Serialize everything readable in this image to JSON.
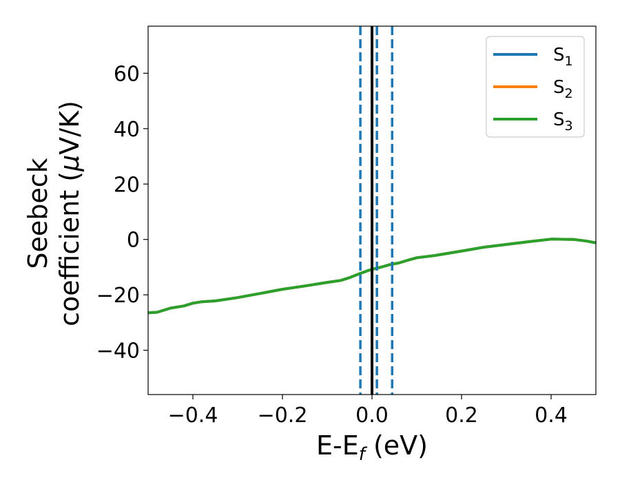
{
  "chart_data": {
    "type": "line",
    "xlabel": {
      "base": "E-E",
      "sub": "f",
      "tail": " (eV)"
    },
    "ylabel": {
      "line1": "Seebeck",
      "line2_pre": "coefficient  (",
      "mu": "μ",
      "line2_post": "V/K)"
    },
    "xlim": [
      -0.5,
      0.5
    ],
    "ylim": [
      -56,
      77
    ],
    "xticks": [
      -0.4,
      -0.2,
      0.0,
      0.2,
      0.4
    ],
    "xtick_labels": [
      "−0.4",
      "−0.2",
      "0.0",
      "0.2",
      "0.4"
    ],
    "yticks": [
      -40,
      -20,
      0,
      20,
      40,
      60
    ],
    "ytick_labels": [
      "−40",
      "−20",
      "0",
      "20",
      "40",
      "60"
    ],
    "grid": false,
    "legend_position": "top-right",
    "series": [
      {
        "name": "S1",
        "base": "S",
        "sub": "1",
        "color": "#1f77b4",
        "x": [
          -0.5,
          -0.48,
          -0.45,
          -0.42,
          -0.4,
          -0.38,
          -0.35,
          -0.3,
          -0.25,
          -0.2,
          -0.15,
          -0.1,
          -0.07,
          -0.05,
          -0.03,
          -0.01,
          0.0,
          0.02,
          0.04,
          0.06,
          0.08,
          0.1,
          0.14,
          0.2,
          0.25,
          0.3,
          0.35,
          0.4,
          0.45,
          0.48,
          0.5
        ],
        "y": [
          -26.5,
          -26.3,
          -24.8,
          -24.0,
          -23.0,
          -22.5,
          -22.2,
          -21.0,
          -19.5,
          -18.0,
          -16.8,
          -15.5,
          -14.8,
          -13.8,
          -12.5,
          -11.3,
          -10.8,
          -10.0,
          -9.1,
          -8.5,
          -7.5,
          -6.6,
          -5.8,
          -4.2,
          -2.8,
          -1.8,
          -0.8,
          0.1,
          0.0,
          -0.6,
          -1.2
        ]
      },
      {
        "name": "S2",
        "base": "S",
        "sub": "2",
        "color": "#ff7f0e",
        "x": [
          -0.5,
          -0.48,
          -0.45,
          -0.42,
          -0.4,
          -0.38,
          -0.35,
          -0.3,
          -0.25,
          -0.2,
          -0.15,
          -0.1,
          -0.07,
          -0.05,
          -0.03,
          -0.01,
          0.0,
          0.02,
          0.04,
          0.06,
          0.08,
          0.1,
          0.14,
          0.2,
          0.25,
          0.3,
          0.35,
          0.4,
          0.45,
          0.48,
          0.5
        ],
        "y": [
          -26.5,
          -26.3,
          -24.8,
          -24.0,
          -23.0,
          -22.5,
          -22.2,
          -21.0,
          -19.5,
          -18.0,
          -16.8,
          -15.5,
          -14.8,
          -13.8,
          -12.5,
          -11.3,
          -10.8,
          -10.0,
          -9.1,
          -8.5,
          -7.5,
          -6.6,
          -5.8,
          -4.2,
          -2.8,
          -1.8,
          -0.8,
          0.1,
          0.0,
          -0.6,
          -1.2
        ]
      },
      {
        "name": "S3",
        "base": "S",
        "sub": "3",
        "color": "#2ca02c",
        "x": [
          -0.5,
          -0.48,
          -0.45,
          -0.42,
          -0.4,
          -0.38,
          -0.35,
          -0.3,
          -0.25,
          -0.2,
          -0.15,
          -0.1,
          -0.07,
          -0.05,
          -0.03,
          -0.01,
          0.0,
          0.02,
          0.04,
          0.06,
          0.08,
          0.1,
          0.14,
          0.2,
          0.25,
          0.3,
          0.35,
          0.4,
          0.45,
          0.48,
          0.5
        ],
        "y": [
          -26.5,
          -26.3,
          -24.8,
          -24.0,
          -23.0,
          -22.5,
          -22.2,
          -21.0,
          -19.5,
          -18.0,
          -16.8,
          -15.5,
          -14.8,
          -13.8,
          -12.5,
          -11.3,
          -10.8,
          -10.0,
          -9.1,
          -8.5,
          -7.5,
          -6.6,
          -5.8,
          -4.2,
          -2.8,
          -1.8,
          -0.8,
          0.1,
          0.0,
          -0.6,
          -1.2
        ]
      }
    ],
    "vlines": [
      {
        "x": 0.0,
        "style": "solid",
        "color": "#000000"
      },
      {
        "x": -0.026,
        "style": "dashed",
        "color": "#1f77b4"
      },
      {
        "x": 0.011,
        "style": "dashed",
        "color": "#1f77b4"
      },
      {
        "x": 0.045,
        "style": "dashed",
        "color": "#1f77b4"
      }
    ]
  }
}
